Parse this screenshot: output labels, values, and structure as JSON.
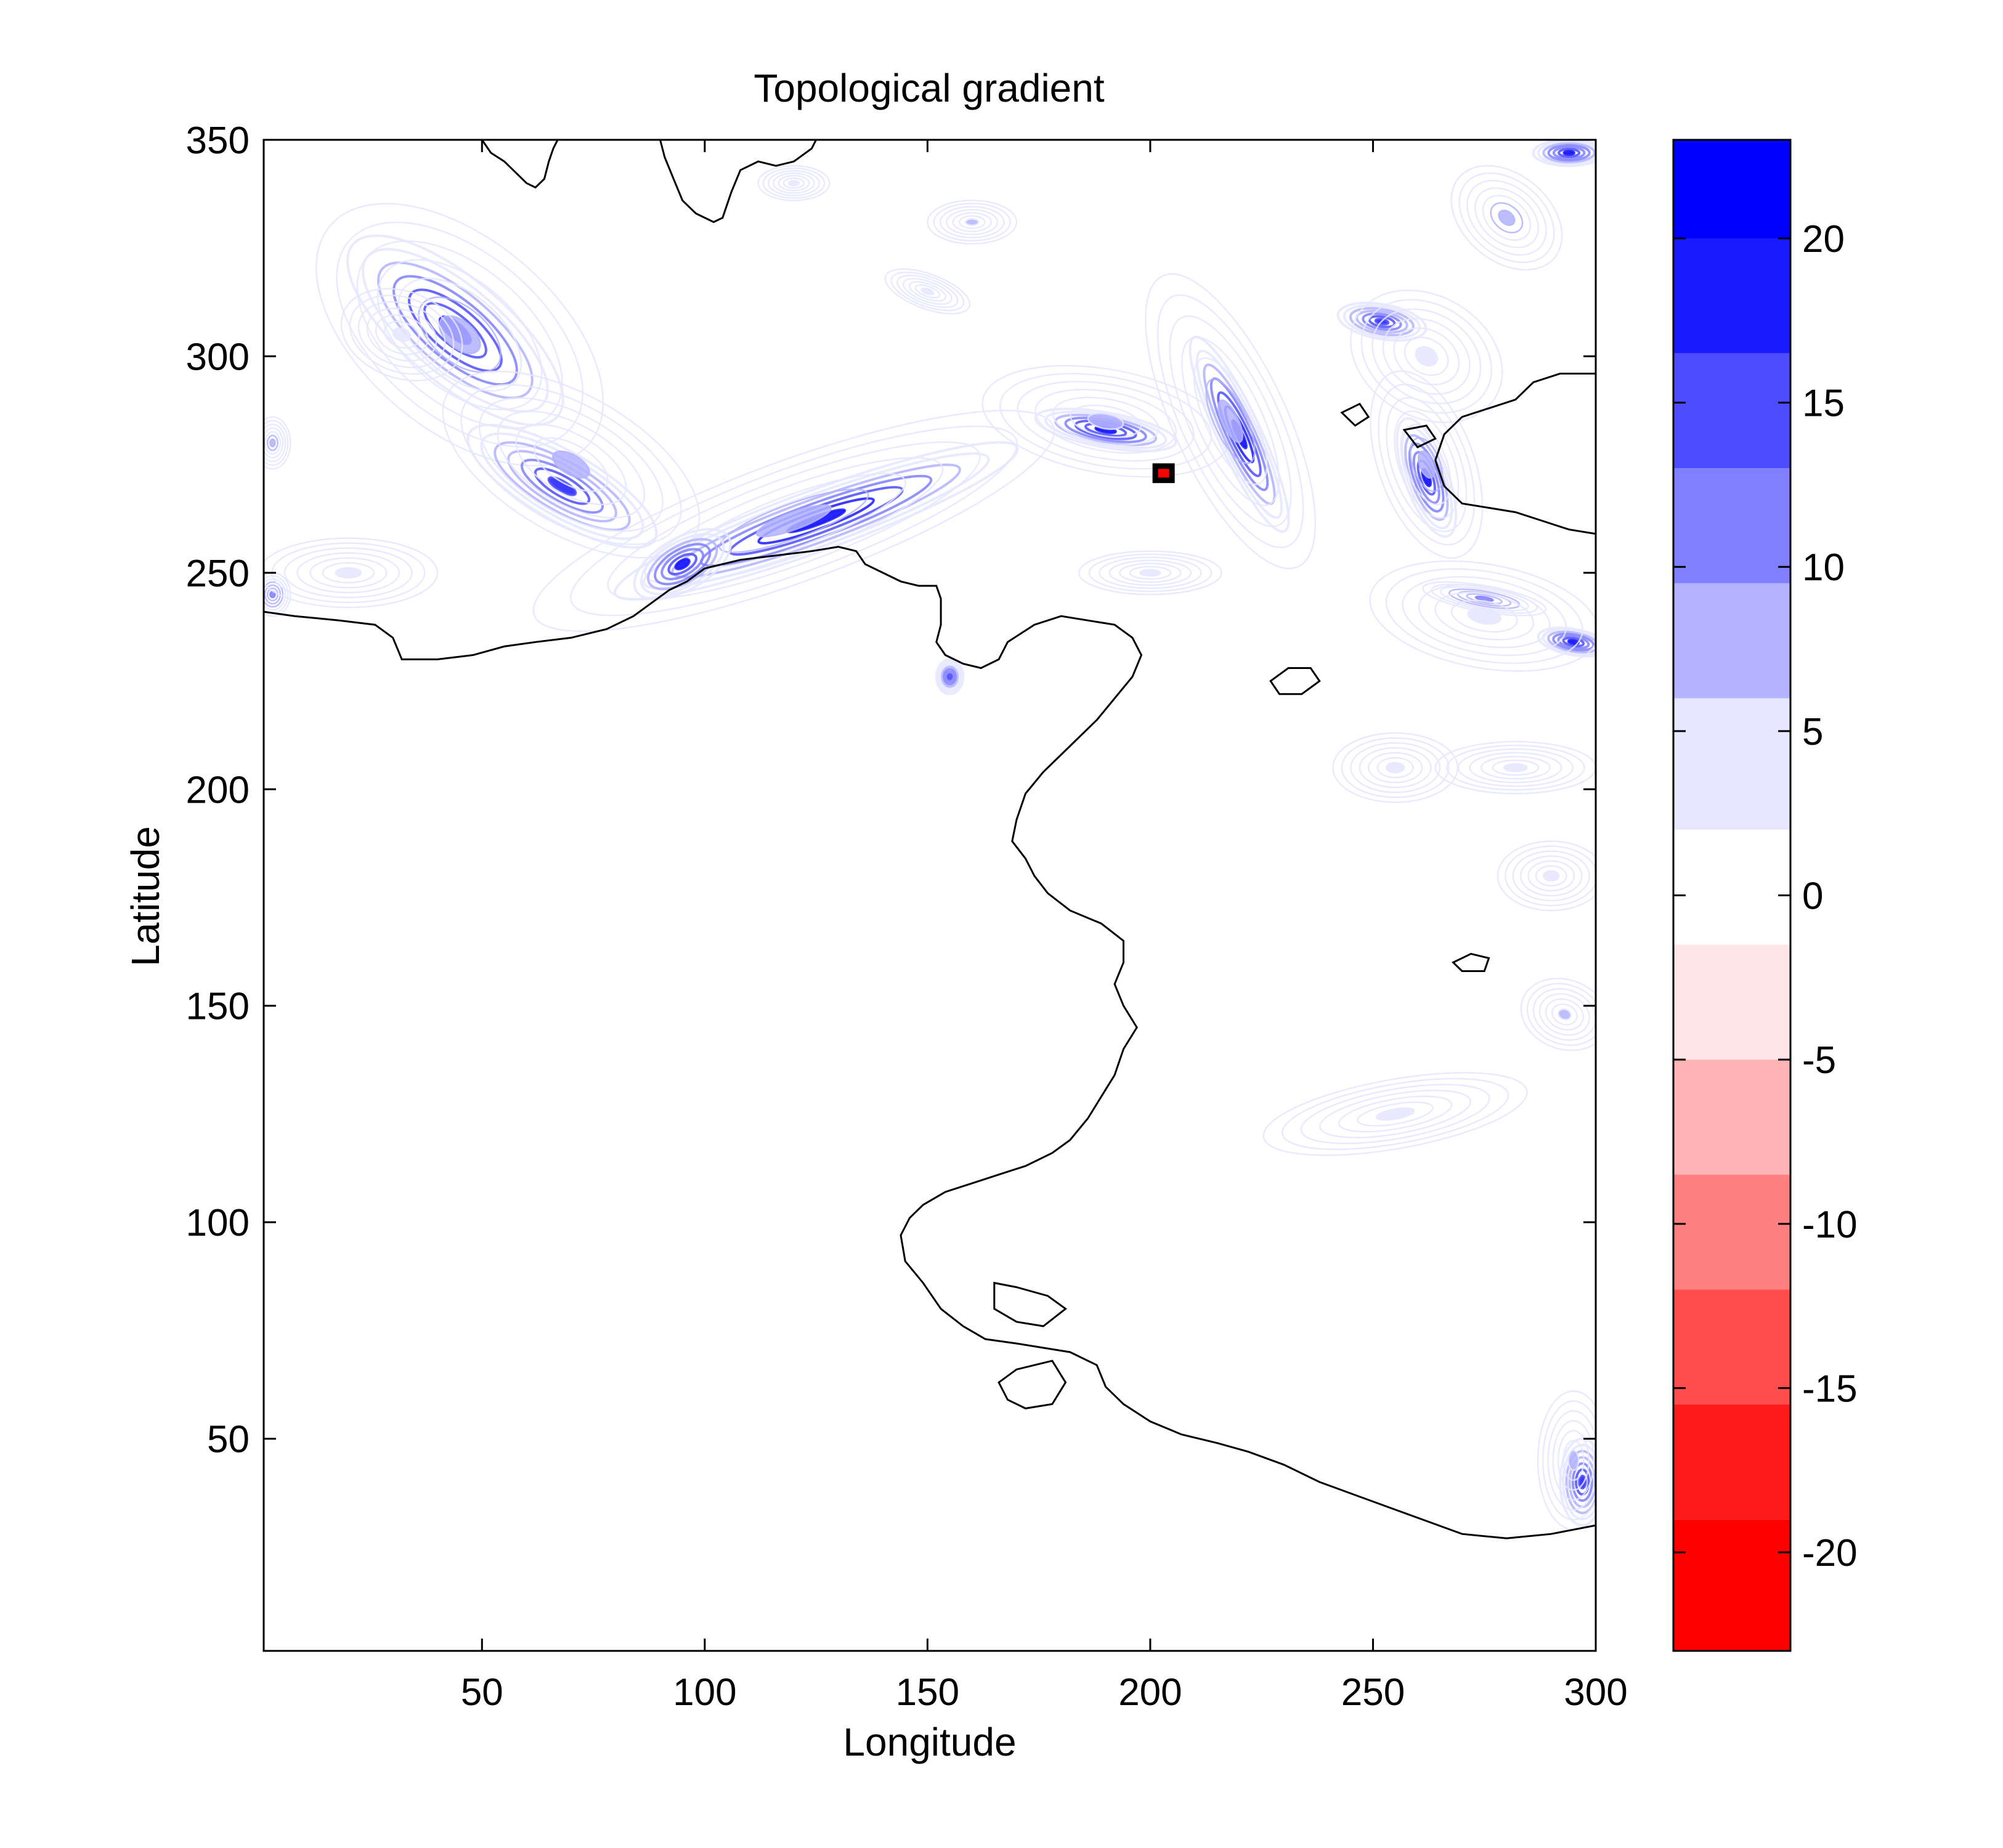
{
  "chart_data": {
    "type": "heatmap",
    "subtype": "filled-contour-map",
    "title": "Topological gradient",
    "xlabel": "Longitude",
    "ylabel": "Latitude",
    "xlim": [
      1,
      300
    ],
    "ylim": [
      1,
      350
    ],
    "xticks": [
      50,
      100,
      150,
      200,
      250,
      300
    ],
    "yticks": [
      50,
      100,
      150,
      200,
      250,
      300,
      350
    ],
    "colorbar": {
      "range": [
        -23,
        23
      ],
      "ticks": [
        -20,
        -15,
        -10,
        -5,
        0,
        5,
        10,
        15,
        20
      ],
      "levels": [
        {
          "from": 20,
          "to": 23,
          "color": "#0000ff"
        },
        {
          "from": 16.5,
          "to": 20,
          "color": "#1a1aff"
        },
        {
          "from": 13,
          "to": 16.5,
          "color": "#4d4dff"
        },
        {
          "from": 9.5,
          "to": 13,
          "color": "#8080ff"
        },
        {
          "from": 6,
          "to": 9.5,
          "color": "#b3b3ff"
        },
        {
          "from": 2,
          "to": 6,
          "color": "#e6e6ff"
        },
        {
          "from": -1.5,
          "to": 2,
          "color": "#ffffff"
        },
        {
          "from": -5,
          "to": -1.5,
          "color": "#ffe6e6"
        },
        {
          "from": -8.5,
          "to": -5,
          "color": "#ffb3b3"
        },
        {
          "from": -12,
          "to": -8.5,
          "color": "#ff8080"
        },
        {
          "from": -15.5,
          "to": -12,
          "color": "#ff4d4d"
        },
        {
          "from": -19,
          "to": -15.5,
          "color": "#ff1a1a"
        },
        {
          "from": -23,
          "to": -19,
          "color": "#ff0000"
        }
      ]
    },
    "coastline": [
      [
        1,
        241
      ],
      [
        8,
        240
      ],
      [
        18,
        239
      ],
      [
        26,
        238
      ],
      [
        30,
        235
      ],
      [
        32,
        230
      ],
      [
        40,
        230
      ],
      [
        48,
        231
      ],
      [
        55,
        233
      ],
      [
        62,
        234
      ],
      [
        70,
        235
      ],
      [
        78,
        237
      ],
      [
        84,
        240
      ],
      [
        88,
        243
      ],
      [
        92,
        246
      ],
      [
        96,
        248
      ],
      [
        100,
        251
      ],
      [
        108,
        253
      ],
      [
        116,
        254
      ],
      [
        124,
        255
      ],
      [
        130,
        256
      ],
      [
        134,
        255
      ],
      [
        136,
        252
      ],
      [
        140,
        250
      ],
      [
        144,
        248
      ],
      [
        148,
        247
      ],
      [
        152,
        247
      ],
      [
        153,
        244
      ],
      [
        153,
        238
      ],
      [
        152,
        234
      ],
      [
        154,
        231
      ],
      [
        158,
        229
      ],
      [
        162,
        228
      ],
      [
        166,
        230
      ],
      [
        168,
        234
      ],
      [
        174,
        238
      ],
      [
        180,
        240
      ],
      [
        186,
        239
      ],
      [
        192,
        238
      ],
      [
        196,
        235
      ],
      [
        198,
        231
      ],
      [
        196,
        226
      ],
      [
        192,
        221
      ],
      [
        188,
        216
      ],
      [
        182,
        210
      ],
      [
        176,
        204
      ],
      [
        172,
        199
      ],
      [
        170,
        193
      ],
      [
        169,
        188
      ],
      [
        172,
        184
      ],
      [
        174,
        180
      ],
      [
        177,
        176
      ],
      [
        182,
        172
      ],
      [
        189,
        169
      ],
      [
        194,
        165
      ],
      [
        194,
        160
      ],
      [
        192,
        155
      ],
      [
        194,
        150
      ],
      [
        197,
        145
      ],
      [
        194,
        140
      ],
      [
        192,
        134
      ],
      [
        189,
        129
      ],
      [
        186,
        124
      ],
      [
        182,
        119
      ],
      [
        178,
        116
      ],
      [
        172,
        113
      ],
      [
        166,
        111
      ],
      [
        160,
        109
      ],
      [
        154,
        107
      ],
      [
        149,
        104
      ],
      [
        146,
        101
      ],
      [
        144,
        97
      ],
      [
        145,
        91
      ],
      [
        149,
        86
      ],
      [
        153,
        80
      ],
      [
        158,
        76
      ],
      [
        163,
        73
      ],
      [
        170,
        72
      ],
      [
        176,
        71
      ],
      [
        182,
        70
      ],
      [
        188,
        67
      ],
      [
        190,
        62
      ],
      [
        194,
        58
      ],
      [
        200,
        54
      ],
      [
        207,
        51
      ],
      [
        215,
        49
      ],
      [
        222,
        47
      ],
      [
        230,
        44
      ],
      [
        238,
        40
      ],
      [
        246,
        37
      ],
      [
        254,
        34
      ],
      [
        262,
        31
      ],
      [
        270,
        28
      ],
      [
        280,
        27
      ],
      [
        290,
        28
      ],
      [
        300,
        30
      ]
    ],
    "coastline_north": [
      [
        50,
        350
      ],
      [
        52,
        347
      ],
      [
        55,
        345
      ],
      [
        58,
        342
      ],
      [
        60,
        340
      ],
      [
        62,
        339
      ],
      [
        64,
        341
      ],
      [
        65,
        345
      ],
      [
        66,
        348
      ],
      [
        67,
        350
      ]
    ],
    "coastline_north_2": [
      [
        90,
        350
      ],
      [
        91,
        346
      ],
      [
        93,
        341
      ],
      [
        95,
        336
      ],
      [
        98,
        333
      ],
      [
        102,
        331
      ],
      [
        104,
        332
      ],
      [
        106,
        338
      ],
      [
        108,
        343
      ],
      [
        112,
        345
      ],
      [
        116,
        344
      ],
      [
        120,
        345
      ],
      [
        124,
        348
      ],
      [
        125,
        350
      ]
    ],
    "coastline_east": [
      [
        300,
        296
      ],
      [
        292,
        296
      ],
      [
        286,
        294
      ],
      [
        282,
        290
      ],
      [
        276,
        288
      ],
      [
        270,
        286
      ],
      [
        266,
        282
      ],
      [
        264,
        276
      ],
      [
        266,
        270
      ],
      [
        270,
        266
      ],
      [
        276,
        265
      ],
      [
        282,
        264
      ],
      [
        288,
        262
      ],
      [
        294,
        260
      ],
      [
        300,
        259
      ]
    ],
    "islands": [
      [
        [
          227,
          225
        ],
        [
          231,
          228
        ],
        [
          236,
          228
        ],
        [
          238,
          225
        ],
        [
          234,
          222
        ],
        [
          229,
          222
        ]
      ],
      [
        [
          268,
          160
        ],
        [
          272,
          162
        ],
        [
          276,
          161
        ],
        [
          275,
          158
        ],
        [
          270,
          158
        ]
      ],
      [
        [
          165,
          86
        ],
        [
          170,
          85
        ],
        [
          177,
          83
        ],
        [
          181,
          80
        ],
        [
          176,
          76
        ],
        [
          170,
          77
        ],
        [
          165,
          80
        ]
      ],
      [
        [
          166,
          63
        ],
        [
          170,
          66
        ],
        [
          178,
          68
        ],
        [
          181,
          63
        ],
        [
          178,
          58
        ],
        [
          172,
          57
        ],
        [
          168,
          59
        ]
      ],
      [
        [
          243,
          287
        ],
        [
          247,
          289
        ],
        [
          249,
          286
        ],
        [
          246,
          284
        ]
      ],
      [
        [
          257,
          283
        ],
        [
          262,
          284
        ],
        [
          264,
          281
        ],
        [
          260,
          279
        ]
      ]
    ],
    "series": [
      {
        "type": "blob",
        "cx": 44,
        "cy": 306,
        "rx": 30,
        "ry": 12,
        "rot": -40,
        "value": 21
      },
      {
        "type": "blob",
        "cx": 45,
        "cy": 305,
        "rx": 38,
        "ry": 22,
        "rot": -40,
        "value": 8
      },
      {
        "type": "blob",
        "cx": 32,
        "cy": 305,
        "rx": 14,
        "ry": 10,
        "rot": -20,
        "value": 3
      },
      {
        "type": "blob",
        "cx": 68,
        "cy": 270,
        "rx": 24,
        "ry": 8,
        "rot": -30,
        "value": 18
      },
      {
        "type": "blob",
        "cx": 70,
        "cy": 275,
        "rx": 32,
        "ry": 16,
        "rot": -30,
        "value": 7
      },
      {
        "type": "blob",
        "cx": 125,
        "cy": 262,
        "rx": 48,
        "ry": 7,
        "rot": 20,
        "value": 22
      },
      {
        "type": "blob",
        "cx": 120,
        "cy": 262,
        "rx": 62,
        "ry": 14,
        "rot": 20,
        "value": 8
      },
      {
        "type": "blob",
        "cx": 95,
        "cy": 252,
        "rx": 12,
        "ry": 6,
        "rot": 30,
        "value": 20
      },
      {
        "type": "blob",
        "cx": 190,
        "cy": 283,
        "rx": 16,
        "ry": 4,
        "rot": -10,
        "value": 21
      },
      {
        "type": "blob",
        "cx": 190,
        "cy": 285,
        "rx": 28,
        "ry": 12,
        "rot": -10,
        "value": 6
      },
      {
        "type": "blob",
        "cx": 220,
        "cy": 282,
        "rx": 24,
        "ry": 5,
        "rot": -65,
        "value": 22
      },
      {
        "type": "blob",
        "cx": 218,
        "cy": 285,
        "rx": 36,
        "ry": 13,
        "rot": -65,
        "value": 8
      },
      {
        "type": "blob",
        "cx": 262,
        "cy": 272,
        "rx": 14,
        "ry": 5,
        "rot": -70,
        "value": 20
      },
      {
        "type": "blob",
        "cx": 262,
        "cy": 275,
        "rx": 22,
        "ry": 11,
        "rot": -70,
        "value": 8
      },
      {
        "type": "blob",
        "cx": 252,
        "cy": 308,
        "rx": 10,
        "ry": 4,
        "rot": -10,
        "value": 18
      },
      {
        "type": "blob",
        "cx": 262,
        "cy": 300,
        "rx": 18,
        "ry": 14,
        "rot": -30,
        "value": 5
      },
      {
        "type": "blob",
        "cx": 280,
        "cy": 332,
        "rx": 14,
        "ry": 10,
        "rot": -40,
        "value": 9
      },
      {
        "type": "blob",
        "cx": 294,
        "cy": 347,
        "rx": 8,
        "ry": 3,
        "rot": 0,
        "value": 20
      },
      {
        "type": "blob",
        "cx": 160,
        "cy": 331,
        "rx": 10,
        "ry": 5,
        "rot": 0,
        "value": 6
      },
      {
        "type": "blob",
        "cx": 150,
        "cy": 315,
        "rx": 10,
        "ry": 4,
        "rot": -20,
        "value": 3
      },
      {
        "type": "blob",
        "cx": 120,
        "cy": 340,
        "rx": 8,
        "ry": 4,
        "rot": 0,
        "value": 3
      },
      {
        "type": "blob",
        "cx": 275,
        "cy": 244,
        "rx": 14,
        "ry": 3,
        "rot": -10,
        "value": 12
      },
      {
        "type": "blob",
        "cx": 295,
        "cy": 234,
        "rx": 8,
        "ry": 3,
        "rot": -10,
        "value": 20
      },
      {
        "type": "blob",
        "cx": 275,
        "cy": 240,
        "rx": 26,
        "ry": 12,
        "rot": -10,
        "value": 4
      },
      {
        "type": "blob",
        "cx": 282,
        "cy": 205,
        "rx": 18,
        "ry": 6,
        "rot": 0,
        "value": 5
      },
      {
        "type": "blob",
        "cx": 290,
        "cy": 180,
        "rx": 12,
        "ry": 8,
        "rot": 0,
        "value": 3
      },
      {
        "type": "blob",
        "cx": 293,
        "cy": 148,
        "rx": 10,
        "ry": 8,
        "rot": -20,
        "value": 6
      },
      {
        "type": "blob",
        "cx": 255,
        "cy": 125,
        "rx": 30,
        "ry": 8,
        "rot": 10,
        "value": 3
      },
      {
        "type": "blob",
        "cx": 255,
        "cy": 205,
        "rx": 14,
        "ry": 8,
        "rot": 0,
        "value": 2.5
      },
      {
        "type": "blob",
        "cx": 297,
        "cy": 40,
        "rx": 5,
        "ry": 10,
        "rot": 0,
        "value": 18
      },
      {
        "type": "blob",
        "cx": 295,
        "cy": 45,
        "rx": 8,
        "ry": 16,
        "rot": 0,
        "value": 6
      },
      {
        "type": "blob",
        "cx": 3,
        "cy": 245,
        "rx": 4,
        "ry": 5,
        "rot": 0,
        "value": 12
      },
      {
        "type": "blob",
        "cx": 3,
        "cy": 280,
        "rx": 4,
        "ry": 6,
        "rot": 0,
        "value": 8
      },
      {
        "type": "blob",
        "cx": 20,
        "cy": 250,
        "rx": 20,
        "ry": 8,
        "rot": 0,
        "value": 2.5
      },
      {
        "type": "blob",
        "cx": 200,
        "cy": 250,
        "rx": 16,
        "ry": 5,
        "rot": 0,
        "value": 3
      },
      {
        "type": "blob",
        "cx": 155,
        "cy": 226,
        "rx": 3,
        "ry": 4,
        "rot": 0,
        "value": 15
      }
    ],
    "marker": {
      "x": 203,
      "y": 273,
      "value": -20
    }
  }
}
